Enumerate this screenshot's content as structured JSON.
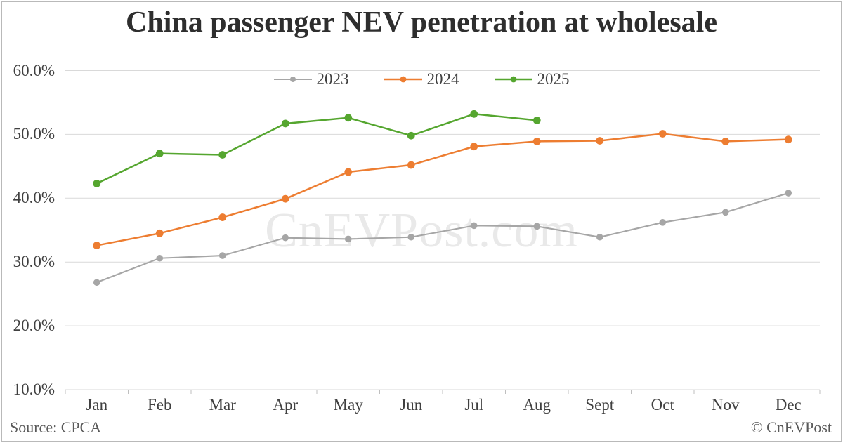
{
  "watermark": "CnEVPost.com",
  "footer": {
    "source": "Source: CPCA",
    "copyright": "© CnEVPost"
  },
  "colors": {
    "grid": "#d9d9d9",
    "tick": "#bfbfbf",
    "axis_text": "#404040",
    "title_text": "#2e2e2e",
    "footer_text": "#595959",
    "watermark_text": "#e9e9e9",
    "border": "#b9b9b9"
  },
  "chart_data": {
    "type": "line",
    "title": "China passenger NEV penetration at wholesale",
    "xlabel": "",
    "ylabel": "",
    "categories": [
      "Jan",
      "Feb",
      "Mar",
      "Apr",
      "May",
      "Jun",
      "Jul",
      "Aug",
      "Sept",
      "Oct",
      "Nov",
      "Dec"
    ],
    "series": [
      {
        "name": "2023",
        "color": "#a6a6a6",
        "line_width": 2.1,
        "marker_radius": 4.8,
        "values": [
          26.8,
          30.6,
          31.0,
          33.8,
          33.6,
          33.9,
          35.7,
          35.6,
          33.9,
          36.2,
          37.8,
          40.8
        ]
      },
      {
        "name": "2024",
        "color": "#ed7d31",
        "line_width": 2.5,
        "marker_radius": 5.4,
        "values": [
          32.6,
          34.5,
          37.0,
          39.9,
          44.1,
          45.2,
          48.1,
          48.9,
          49.0,
          50.1,
          48.9,
          49.2
        ]
      },
      {
        "name": "2025",
        "color": "#55a62f",
        "line_width": 2.5,
        "marker_radius": 5.4,
        "values": [
          42.3,
          47.0,
          46.8,
          51.7,
          52.6,
          49.8,
          53.2,
          52.2,
          null,
          null,
          null,
          null
        ]
      }
    ],
    "ylim": [
      10,
      60
    ],
    "yticks": [
      60,
      50,
      40,
      30,
      20,
      10
    ],
    "ytick_labels": [
      "60.0%",
      "50.0%",
      "40.0%",
      "30.0%",
      "20.0%",
      "10.0%"
    ],
    "grid": true,
    "legend_position": "top-center"
  }
}
